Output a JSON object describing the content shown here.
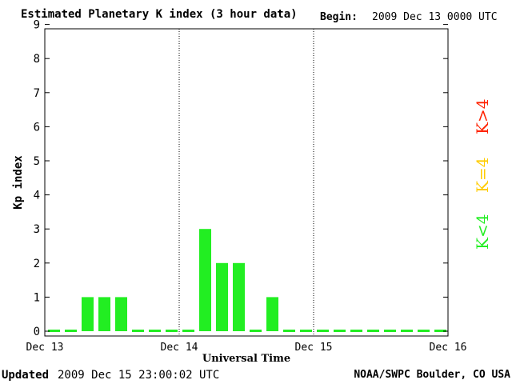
{
  "header": {
    "title": "Estimated Planetary K index (3 hour data)",
    "begin_label": "Begin:",
    "begin_value": "2009 Dec 13 0000 UTC"
  },
  "footer": {
    "updated_label": "Updated",
    "updated_value": "2009 Dec 15 23:00:02 UTC",
    "credit": "NOAA/SWPC Boulder, CO USA"
  },
  "legend": {
    "k_lt4": "K<4",
    "k_eq4": "K=4",
    "k_gt4": "K>4",
    "colors": {
      "k_lt4": "#22ee22",
      "k_eq4": "#ffdd00",
      "k_gt4": "#ff2200"
    }
  },
  "chart_data": {
    "type": "bar",
    "xlabel": "Universal Time",
    "ylabel": "Kp index",
    "ylim": [
      0,
      9
    ],
    "yticks": [
      "0",
      "1",
      "2",
      "3",
      "4",
      "5",
      "6",
      "7",
      "8",
      "9"
    ],
    "xticks": [
      "Dec 13",
      "Dec 14",
      "Dec 15",
      "Dec 16"
    ],
    "values": [
      0,
      0,
      1,
      1,
      1,
      0,
      0,
      0,
      0,
      3,
      2,
      2,
      0,
      1,
      0,
      0,
      0,
      0,
      0,
      0,
      0,
      0,
      0,
      0
    ],
    "bar_color": "#22ee22",
    "day_dividers": [
      "Dec 14",
      "Dec 15"
    ]
  }
}
